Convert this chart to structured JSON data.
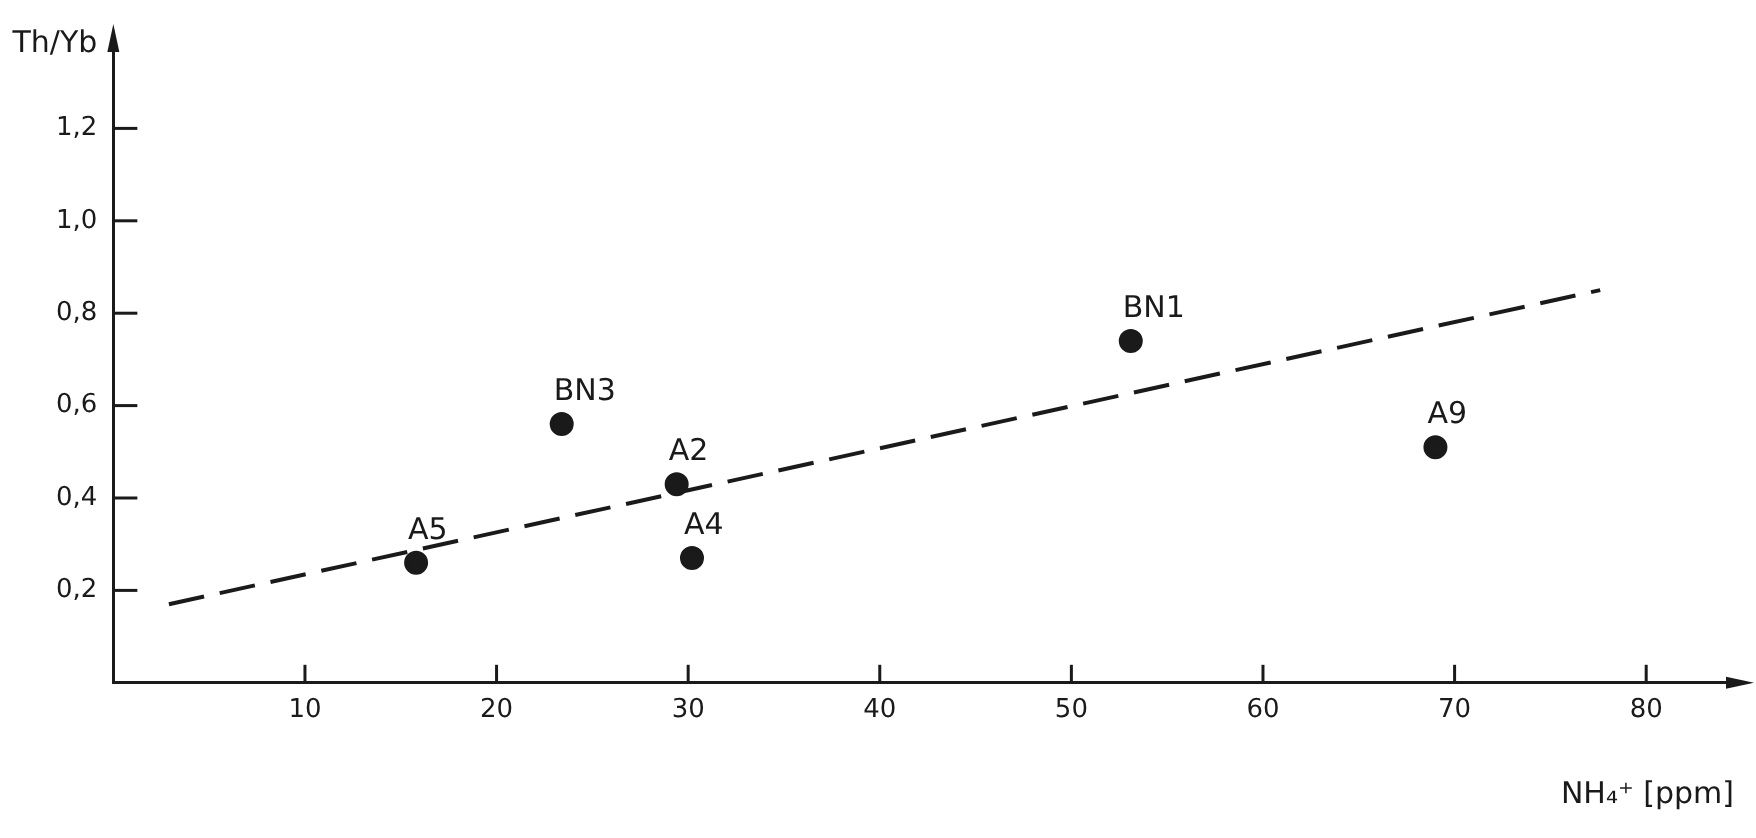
{
  "chart_data": {
    "type": "scatter",
    "xlabel": "NH₄⁺ [ppm]",
    "ylabel": "Th/Yb",
    "series": [
      {
        "color": "#1a1a1a",
        "marker": "circle",
        "x": [
          15.8,
          23.4,
          29.4,
          30.2,
          53.1,
          69.0
        ],
        "values": [
          0.26,
          0.56,
          0.43,
          0.27,
          0.74,
          0.51
        ]
      },
      {
        "type": "line",
        "color": "#1a1a1a",
        "line_style": "dashed",
        "marker": "none",
        "x": [
          2.9,
          77.6
        ],
        "values": [
          0.17,
          0.85
        ]
      }
    ],
    "annotations": [
      {
        "text": "A5",
        "x": 15.8,
        "y": 0.26
      },
      {
        "text": "BN3",
        "x": 23.4,
        "y": 0.56
      },
      {
        "text": "A2",
        "x": 29.4,
        "y": 0.43
      },
      {
        "text": "A4",
        "x": 30.2,
        "y": 0.27
      },
      {
        "text": "BN1",
        "x": 53.1,
        "y": 0.74
      },
      {
        "text": "A9",
        "x": 69.0,
        "y": 0.51
      }
    ],
    "xlim": [
      0,
      85
    ],
    "xticks": [
      10,
      20,
      30,
      40,
      50,
      60,
      70,
      80
    ],
    "ylim": [
      0,
      1.4
    ],
    "yticks": [
      {
        "value": 0.2,
        "label": "0,2"
      },
      {
        "value": 0.4,
        "label": "0,4"
      },
      {
        "value": 0.6,
        "label": "0,6"
      },
      {
        "value": 0.8,
        "label": "0,8"
      },
      {
        "value": 1.0,
        "label": "1,0"
      },
      {
        "value": 1.2,
        "label": "1,2"
      }
    ],
    "grid": false,
    "legend": false
  }
}
